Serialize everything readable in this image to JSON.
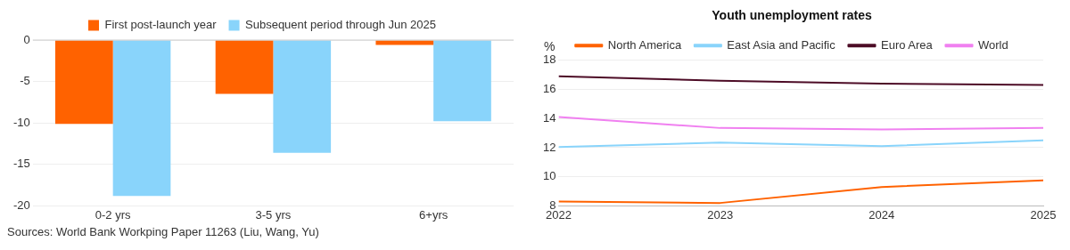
{
  "chart_data": [
    {
      "type": "bar",
      "categories": [
        "0-2 yrs",
        "3-5 yrs",
        "6+yrs"
      ],
      "series": [
        {
          "name": "First post-launch year",
          "color": "#ff6200",
          "values": [
            -10.1,
            -6.5,
            -0.6
          ]
        },
        {
          "name": "Subsequent period through Jun 2025",
          "color": "#89d4fb",
          "values": [
            -18.8,
            -13.6,
            -9.8
          ]
        }
      ],
      "ylim": [
        -20,
        0
      ],
      "yticks": [
        -20,
        -15,
        -10,
        -5,
        0
      ],
      "grid": "y",
      "legend": "top",
      "annotations": [
        "Sources: World Bank Workping Paper 11263 (Liu, Wang, Yu)"
      ]
    },
    {
      "type": "line",
      "title": "Youth unemployment rates",
      "ylabel": "%",
      "x": [
        2022,
        2023,
        2024,
        2025
      ],
      "series": [
        {
          "name": "North America",
          "color": "#ff6200",
          "values": [
            8.3,
            8.2,
            9.3,
            9.75
          ]
        },
        {
          "name": "East Asia and Pacific",
          "color": "#89d4fb",
          "values": [
            12.05,
            12.35,
            12.1,
            12.5
          ]
        },
        {
          "name": "Euro Area",
          "color": "#4d0c26",
          "values": [
            16.9,
            16.6,
            16.4,
            16.3
          ]
        },
        {
          "name": "World",
          "color": "#f080f0",
          "values": [
            14.1,
            13.35,
            13.25,
            13.35
          ]
        }
      ],
      "xlim": [
        2022,
        2025
      ],
      "xticks": [
        2022,
        2023,
        2024,
        2025
      ],
      "ylim": [
        8,
        18
      ],
      "yticks": [
        8,
        10,
        12,
        14,
        16,
        18
      ],
      "grid": "y",
      "legend": "top",
      "marker": "none"
    }
  ]
}
